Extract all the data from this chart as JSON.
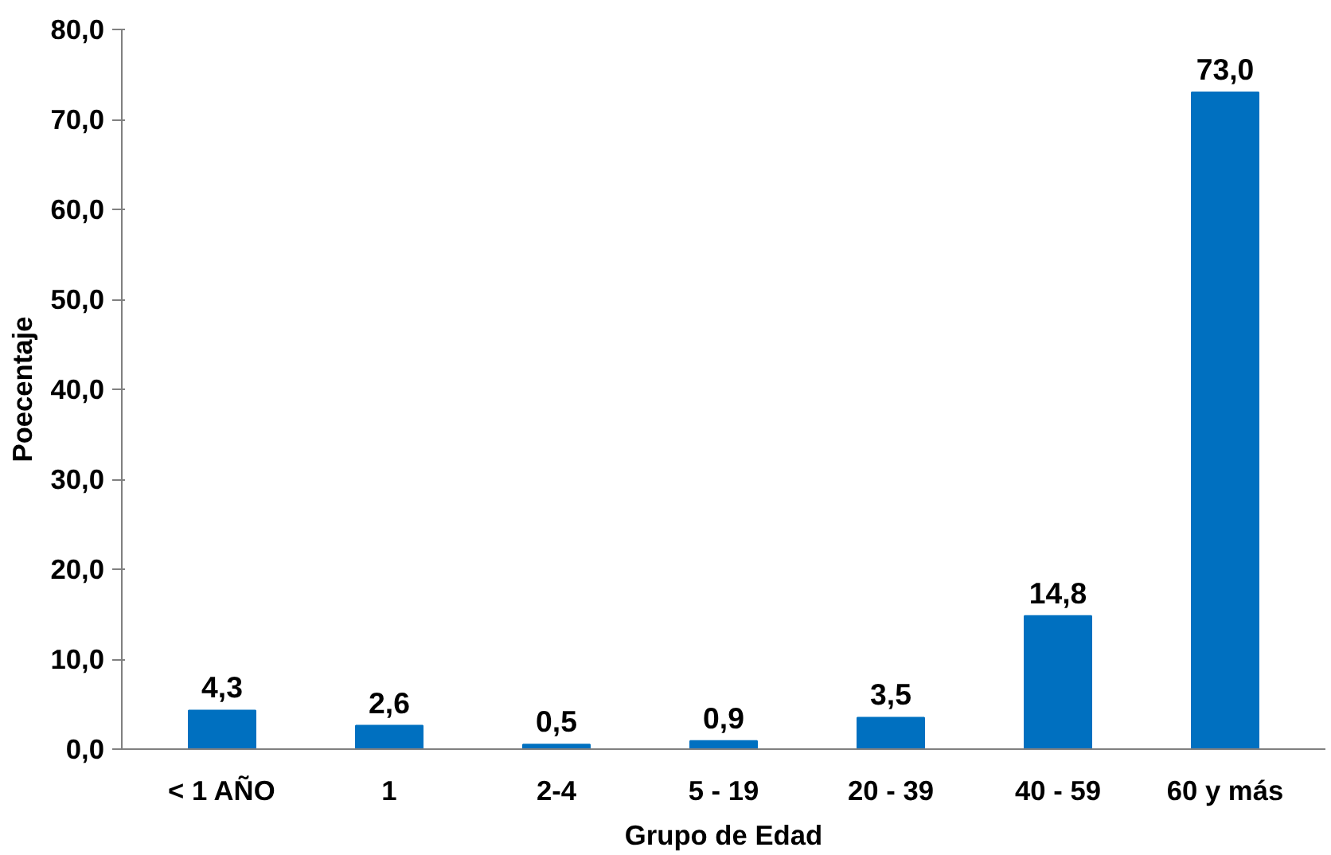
{
  "chart_data": {
    "type": "bar",
    "xlabel": "Grupo de Edad",
    "ylabel": "Poecentaje",
    "categories": [
      "< 1 AÑO",
      "1",
      "2-4",
      "5 - 19",
      "20 - 39",
      "40 - 59",
      "60 y más"
    ],
    "values": [
      4.3,
      2.6,
      0.5,
      0.9,
      3.5,
      14.8,
      73.0
    ],
    "value_labels": [
      "4,3",
      "2,6",
      "0,5",
      "0,9",
      "3,5",
      "14,8",
      "73,0"
    ],
    "color": "#0070c0",
    "ylim": [
      0,
      80
    ],
    "yticks": [
      {
        "value": 0,
        "label": "0,0"
      },
      {
        "value": 10,
        "label": "10,0"
      },
      {
        "value": 20,
        "label": "20,0"
      },
      {
        "value": 30,
        "label": "30,0"
      },
      {
        "value": 40,
        "label": "40,0"
      },
      {
        "value": 50,
        "label": "50,0"
      },
      {
        "value": 60,
        "label": "60,0"
      },
      {
        "value": 70,
        "label": "70,0"
      },
      {
        "value": 80,
        "label": "80,0"
      }
    ],
    "grid": false
  }
}
